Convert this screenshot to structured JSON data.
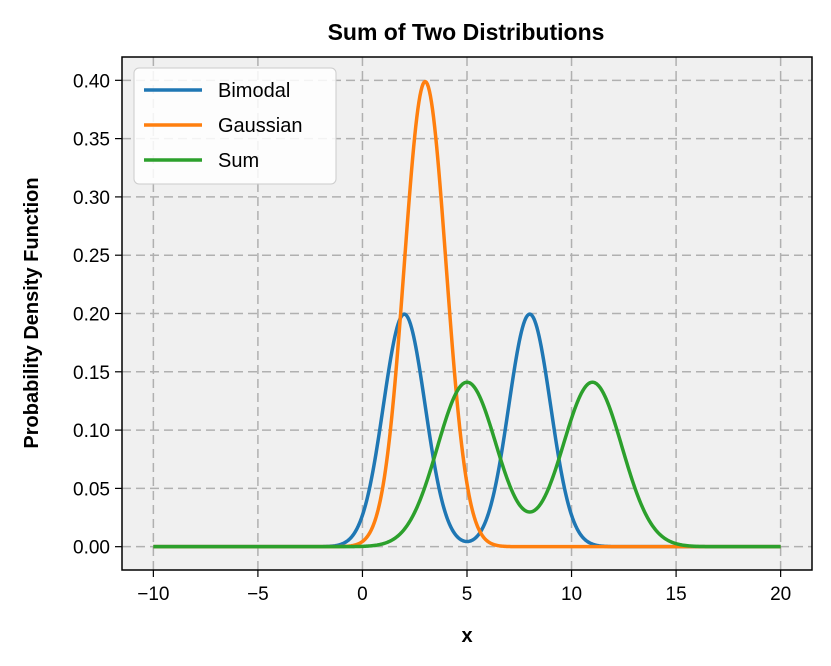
{
  "chart_data": {
    "type": "line",
    "title": "Sum of Two Distributions",
    "xlabel": "x",
    "ylabel": "Probability Density Function",
    "xlim": [
      -11.5,
      21.5
    ],
    "ylim": [
      -0.02,
      0.42
    ],
    "xticks": [
      -10,
      -5,
      0,
      5,
      10,
      15,
      20
    ],
    "xtick_labels": [
      "−10",
      "−5",
      "0",
      "5",
      "10",
      "15",
      "20"
    ],
    "yticks": [
      0.0,
      0.05,
      0.1,
      0.15,
      0.2,
      0.25,
      0.3,
      0.35,
      0.4
    ],
    "ytick_labels": [
      "0.00",
      "0.05",
      "0.10",
      "0.15",
      "0.20",
      "0.25",
      "0.30",
      "0.35",
      "0.40"
    ],
    "grid": true,
    "legend_position": "top-left",
    "background": "#f0f0f0",
    "series": [
      {
        "name": "Bimodal",
        "color": "#1f77b4",
        "description": "equal mixture of two normals",
        "components": [
          {
            "weight": 0.5,
            "mean": 2,
            "std": 1
          },
          {
            "weight": 0.5,
            "mean": 8,
            "std": 1
          }
        ],
        "x_range": [
          -10,
          20
        ]
      },
      {
        "name": "Gaussian",
        "color": "#ff7f0e",
        "components": [
          {
            "weight": 1.0,
            "mean": 3,
            "std": 1
          }
        ],
        "x_range": [
          -10,
          20
        ]
      },
      {
        "name": "Sum",
        "color": "#2ca02c",
        "components": [
          {
            "weight": 0.5,
            "mean": 5,
            "std": 1.4142
          },
          {
            "weight": 0.5,
            "mean": 11,
            "std": 1.4142
          }
        ],
        "x_range": [
          -10,
          20
        ]
      }
    ]
  }
}
